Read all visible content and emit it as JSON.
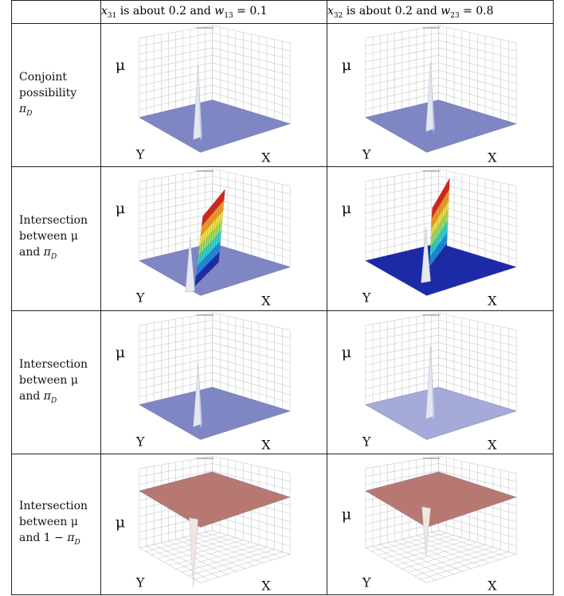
{
  "header": {
    "col1": {
      "prefix": "x",
      "prefix_sub": "31",
      "mid": " is about 0.2 and ",
      "var": "w",
      "var_sub": "13",
      "suffix": " = 0.1"
    },
    "col2": {
      "prefix": "x",
      "prefix_sub": "32",
      "mid": " is about 0.2 and ",
      "var": "w",
      "var_sub": "23",
      "suffix": " = 0.8"
    }
  },
  "rows": [
    {
      "label_lines": [
        "Conjoint",
        "possibility"
      ],
      "label_math": "π",
      "label_math_sub": "D"
    },
    {
      "label_lines": [
        "Intersection",
        "between μ"
      ],
      "label_last_prefix": "and ",
      "label_math": "π",
      "label_math_sub": "D"
    },
    {
      "label_lines": [
        "Intersection",
        "between μ"
      ],
      "label_last_prefix": "and ",
      "label_math": "π",
      "label_math_sub": "D"
    },
    {
      "label_lines": [
        "Intersection",
        "between μ"
      ],
      "label_last_prefix": "and 1 − ",
      "label_math": "π",
      "label_math_sub": "D"
    }
  ],
  "plot_labels": {
    "z_axis": "μ",
    "x_axis": "X",
    "y_axis": "Y"
  },
  "plots": [
    {
      "row": 0,
      "col": 0,
      "kind": "spike",
      "floor_color": "#7f86c4",
      "spike_color": "#e4e6f2"
    },
    {
      "row": 0,
      "col": 1,
      "kind": "spike",
      "floor_color": "#7f86c4",
      "spike_color": "#e4e6f2"
    },
    {
      "row": 1,
      "col": 0,
      "kind": "ridge",
      "floor_color": "#7f86c4",
      "spike_color": "#e4e6f2"
    },
    {
      "row": 1,
      "col": 1,
      "kind": "ridge",
      "floor_color": "#1c2aa8",
      "spike_color": "#e4e6f2"
    },
    {
      "row": 2,
      "col": 0,
      "kind": "spike",
      "floor_color": "#7f86c4",
      "spike_color": "#e4e6f2"
    },
    {
      "row": 2,
      "col": 1,
      "kind": "spike",
      "floor_color": "#a5aad8",
      "spike_color": "#e4e6f2"
    },
    {
      "row": 3,
      "col": 0,
      "kind": "dip",
      "floor_color": "#b87872",
      "spike_color": "#efe5e3"
    },
    {
      "row": 3,
      "col": 1,
      "kind": "dip",
      "floor_color": "#b87872",
      "spike_color": "#efe5e3"
    }
  ],
  "colors": {
    "ridge_ramp": [
      "#1c2aa8",
      "#1f8be0",
      "#2fd6d0",
      "#9be06b",
      "#f3e23b",
      "#f59a24",
      "#d8221a"
    ]
  }
}
